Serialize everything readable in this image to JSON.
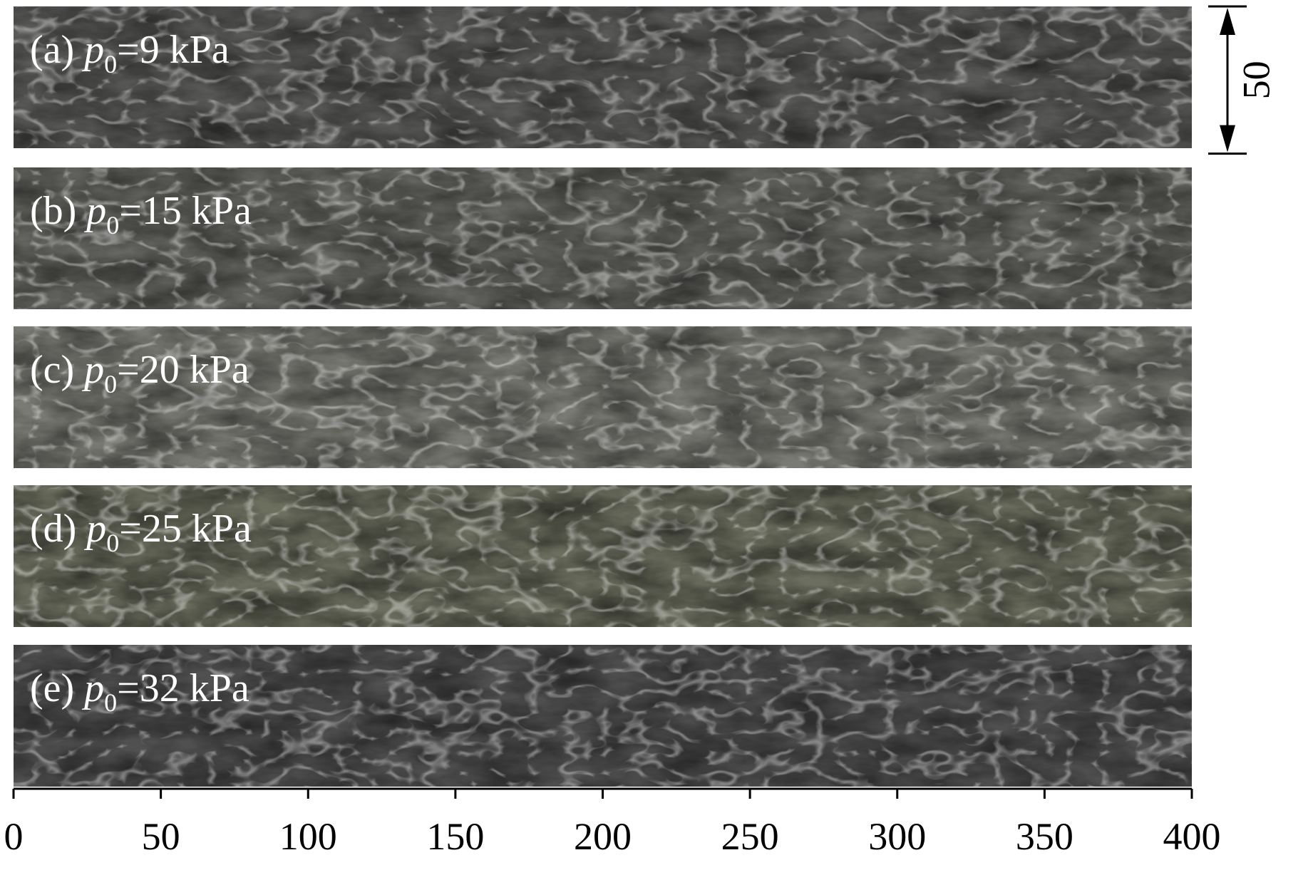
{
  "panels": [
    {
      "tag": "(a)",
      "symbol": "p",
      "subscript": "0",
      "value": "=9 kPa",
      "tone": "#5a5a58"
    },
    {
      "tag": "(b)",
      "symbol": "p",
      "subscript": "0",
      "value": "=15 kPa",
      "tone": "#666662"
    },
    {
      "tag": "(c)",
      "symbol": "p",
      "subscript": "0",
      "value": "=20 kPa",
      "tone": "#7a7a74"
    },
    {
      "tag": "(d)",
      "symbol": "p",
      "subscript": "0",
      "value": "=25 kPa",
      "tone": "#6c6e5e"
    },
    {
      "tag": "(e)",
      "symbol": "p",
      "subscript": "0",
      "value": "=32 kPa",
      "tone": "#505050"
    }
  ],
  "scale": {
    "xlim": [
      0,
      400
    ],
    "xticks": [
      0,
      50,
      100,
      150,
      200,
      250,
      300,
      350,
      400
    ]
  },
  "scale_bar": {
    "value": 50
  }
}
